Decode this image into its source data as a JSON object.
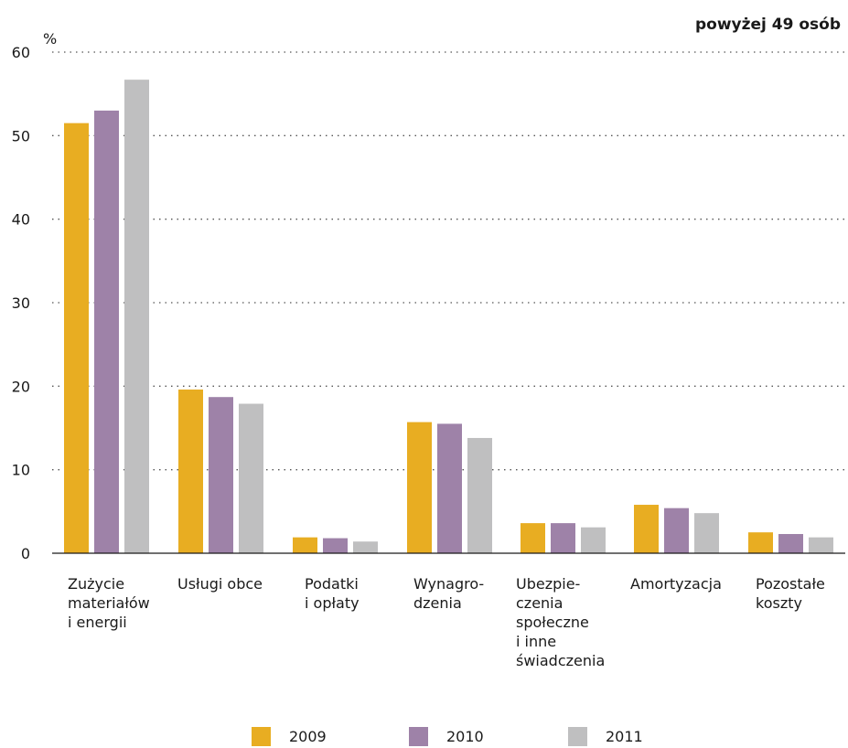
{
  "subtitle": "powyżej 49 osób",
  "chart_data": {
    "type": "bar",
    "ylabel": "%",
    "ylim": [
      0,
      60
    ],
    "yticks": [
      0,
      10,
      20,
      30,
      40,
      50,
      60
    ],
    "grid": true,
    "legend_position": "bottom",
    "categories": [
      "Zużycie\nmateriałów\ni energii",
      "Usługi obce",
      "Podatki\ni opłaty",
      "Wynagro-\ndzenia",
      "Ubezpie-\nczenia\nspołeczne\ni inne\nświadczenia",
      "Amortyzacja",
      "Pozostałe\nkoszty"
    ],
    "series": [
      {
        "name": "2009",
        "color": "#e8ad22",
        "values": [
          51.5,
          19.6,
          1.9,
          15.7,
          3.6,
          5.8,
          2.5
        ]
      },
      {
        "name": "2010",
        "color": "#9e82a8",
        "values": [
          53.0,
          18.7,
          1.8,
          15.5,
          3.6,
          5.4,
          2.3
        ]
      },
      {
        "name": "2011",
        "color": "#bfbfc0",
        "values": [
          56.7,
          17.9,
          1.4,
          13.8,
          3.1,
          4.8,
          1.9
        ]
      }
    ]
  }
}
